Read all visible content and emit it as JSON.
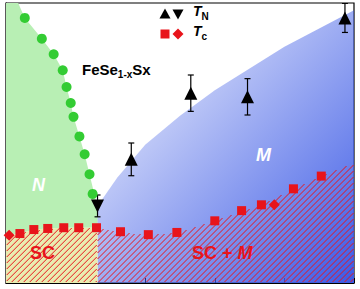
{
  "chart_data": {
    "type": "scatter",
    "title": "FeSe1-xSx",
    "xlim": [
      0,
      10
    ],
    "xticks": [
      0,
      2,
      4,
      6,
      8,
      10
    ],
    "ylim": [
      0,
      7.7
    ],
    "yticks": [
      0,
      1,
      2,
      3,
      4,
      5,
      6,
      7
    ],
    "tick_labels": false,
    "grid": false,
    "legend": "top",
    "series": [
      {
        "color": "#33cc33",
        "marker": "circle",
        "x": [
          0.54,
          1.03,
          1.37,
          1.63,
          1.74,
          1.86,
          1.94,
          2.11,
          2.26,
          2.4,
          2.49
        ],
        "values": [
          7.29,
          6.72,
          6.29,
          5.85,
          5.39,
          4.95,
          4.57,
          4.03,
          3.54,
          2.99,
          2.45
        ]
      },
      {
        "name": "TN",
        "color": "#000000",
        "marker": "triangle",
        "x": [
          3.6,
          5.31,
          6.94,
          9.74
        ],
        "values": [
          3.4,
          5.22,
          5.12,
          7.29
        ],
        "errors": [
          0.45,
          0.5,
          0.5,
          0.4
        ]
      },
      {
        "name": "TN",
        "color": "#000000",
        "marker": "triangle-down",
        "x": [
          2.63
        ],
        "values": [
          2.12
        ],
        "errors": [
          0.3
        ]
      },
      {
        "name": "Tc",
        "color": "#e8141b",
        "marker": "square",
        "x": [
          0.4,
          0.8,
          1.2,
          1.66,
          2.09,
          2.6,
          3.29,
          4.09,
          4.91,
          6.0,
          6.77,
          7.34,
          8.26,
          9.06
        ],
        "values": [
          1.36,
          1.47,
          1.5,
          1.52,
          1.52,
          1.52,
          1.41,
          1.33,
          1.39,
          1.71,
          1.99,
          2.15,
          2.59,
          2.94
        ]
      },
      {
        "name": "Tc",
        "color": "#e8141b",
        "marker": "diamond",
        "x": [
          0.09,
          7.71
        ],
        "values": [
          1.31,
          2.15
        ]
      }
    ],
    "regions": [
      {
        "label": "N",
        "label_color": "#ffffff",
        "color": "#b8efb4",
        "polygon": [
          [
            0,
            7.7
          ],
          [
            0.35,
            7.7
          ],
          [
            0.54,
            7.29
          ],
          [
            1.03,
            6.72
          ],
          [
            1.37,
            6.29
          ],
          [
            1.63,
            5.85
          ],
          [
            1.74,
            5.39
          ],
          [
            1.86,
            4.95
          ],
          [
            1.94,
            4.57
          ],
          [
            2.11,
            4.03
          ],
          [
            2.26,
            3.54
          ],
          [
            2.4,
            2.99
          ],
          [
            2.55,
            2.4
          ],
          [
            2.63,
            2.12
          ],
          [
            2.63,
            1.52
          ],
          [
            1.66,
            1.52
          ],
          [
            1.2,
            1.5
          ],
          [
            0.8,
            1.47
          ],
          [
            0.4,
            1.36
          ],
          [
            0,
            1.3
          ]
        ]
      },
      {
        "label": "M",
        "label_color": "#ffffff",
        "color": "#3c5ae6",
        "polygon": [
          [
            2.63,
            2.12
          ],
          [
            3.2,
            2.9
          ],
          [
            4.0,
            3.8
          ],
          [
            5.0,
            4.6
          ],
          [
            6.0,
            5.3
          ],
          [
            7.0,
            5.9
          ],
          [
            8.0,
            6.5
          ],
          [
            9.0,
            7.0
          ],
          [
            10,
            7.5
          ],
          [
            10,
            0
          ],
          [
            2.63,
            0
          ]
        ]
      },
      {
        "label": "SC",
        "label_color": "#e8141b",
        "color": "#e9ebb0",
        "hatch": "#e8141b",
        "polygon": [
          [
            0,
            0
          ],
          [
            0,
            1.3
          ],
          [
            0.4,
            1.36
          ],
          [
            0.8,
            1.47
          ],
          [
            1.2,
            1.5
          ],
          [
            1.66,
            1.52
          ],
          [
            2.09,
            1.52
          ],
          [
            2.63,
            1.52
          ],
          [
            2.63,
            0
          ]
        ]
      },
      {
        "label": "SC + M",
        "label_color": "#e8141b",
        "hatch": "#e8141b",
        "polygon": [
          [
            2.63,
            0
          ],
          [
            2.63,
            1.52
          ],
          [
            3.29,
            1.41
          ],
          [
            4.09,
            1.33
          ],
          [
            4.91,
            1.39
          ],
          [
            6.0,
            1.71
          ],
          [
            6.77,
            1.99
          ],
          [
            7.34,
            2.15
          ],
          [
            8.26,
            2.59
          ],
          [
            9.06,
            2.94
          ],
          [
            10,
            3.3
          ],
          [
            10,
            0
          ]
        ]
      }
    ]
  }
}
